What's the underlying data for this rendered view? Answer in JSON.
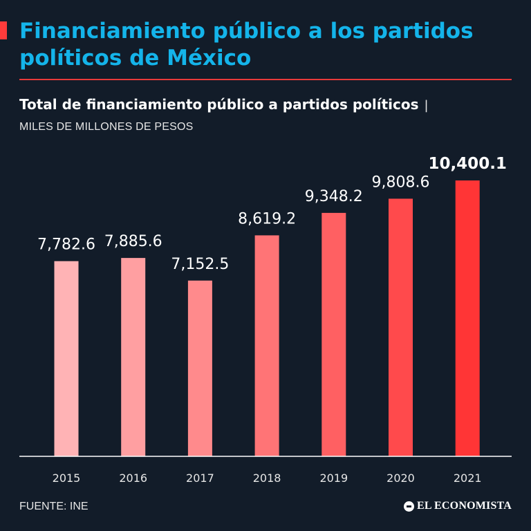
{
  "header": {
    "title": "Financiamiento público a los partidos políticos de México",
    "subtitle": "Total de financiamiento público a partidos políticos",
    "subtitle_separator": "|",
    "units": "MILES DE MILLONES DE PESOS"
  },
  "footer": {
    "source": "FUENTE: INE",
    "logo_text": "EL ECONOMISTA"
  },
  "colors": {
    "background": "#121c29",
    "title": "#14b4ea",
    "accent": "#ff3b3b",
    "bars": [
      "#ffb3b5",
      "#ff9fa1",
      "#ff8a8c",
      "#ff7476",
      "#ff6062",
      "#ff4a4c",
      "#ff3536"
    ]
  },
  "chart_data": {
    "type": "bar",
    "title": "Total de financiamiento público a partidos políticos",
    "xlabel": "",
    "ylabel": "MILES DE MILLONES DE PESOS",
    "categories": [
      "2015",
      "2016",
      "2017",
      "2018",
      "2019",
      "2020",
      "2021"
    ],
    "values": [
      7782.6,
      7885.6,
      7152.5,
      8619.2,
      9348.2,
      9808.6,
      10400.1
    ],
    "labels": [
      "7,782.6",
      "7,885.6",
      "7,152.5",
      "8,619.2",
      "9,348.2",
      "9,808.6",
      "10,400.1"
    ],
    "highlight_index": 6,
    "ylim": [
      1450,
      10400.1
    ],
    "grid": false,
    "legend": false
  }
}
